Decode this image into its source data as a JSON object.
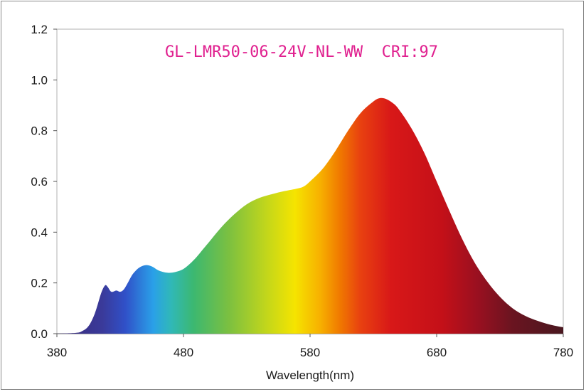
{
  "chart_data": {
    "type": "area",
    "title": "GL-LMR50-06-24V-NL-WW  CRI:97",
    "title_color": "#e0208f",
    "xlabel": "Wavelength(nm)",
    "ylabel": "",
    "xlim": [
      380,
      780
    ],
    "ylim": [
      0,
      1.2
    ],
    "x_ticks": [
      380,
      480,
      580,
      680,
      780
    ],
    "y_ticks": [
      0.0,
      0.2,
      0.4,
      0.6,
      0.8,
      1.0,
      1.2
    ],
    "grid": false,
    "fill": "visible-spectrum gradient by wavelength",
    "series": [
      {
        "x": [
          380,
          395,
          400,
          405,
          410,
          415,
          418,
          420,
          423,
          427,
          430,
          433,
          436,
          440,
          445,
          450,
          455,
          460,
          465,
          470,
          475,
          480,
          485,
          490,
          495,
          500,
          510,
          520,
          530,
          540,
          550,
          560,
          570,
          575,
          580,
          590,
          600,
          610,
          620,
          630,
          635,
          640,
          645,
          650,
          660,
          670,
          680,
          690,
          700,
          710,
          720,
          730,
          740,
          750,
          760,
          770,
          780
        ],
        "values": [
          0.0,
          0.003,
          0.01,
          0.03,
          0.08,
          0.16,
          0.19,
          0.185,
          0.165,
          0.17,
          0.165,
          0.175,
          0.2,
          0.235,
          0.26,
          0.27,
          0.265,
          0.25,
          0.242,
          0.24,
          0.245,
          0.255,
          0.275,
          0.3,
          0.33,
          0.36,
          0.42,
          0.47,
          0.51,
          0.535,
          0.55,
          0.562,
          0.572,
          0.58,
          0.6,
          0.65,
          0.72,
          0.8,
          0.87,
          0.915,
          0.928,
          0.925,
          0.91,
          0.885,
          0.81,
          0.715,
          0.6,
          0.485,
          0.375,
          0.28,
          0.205,
          0.145,
          0.1,
          0.07,
          0.05,
          0.035,
          0.025
        ]
      }
    ]
  }
}
